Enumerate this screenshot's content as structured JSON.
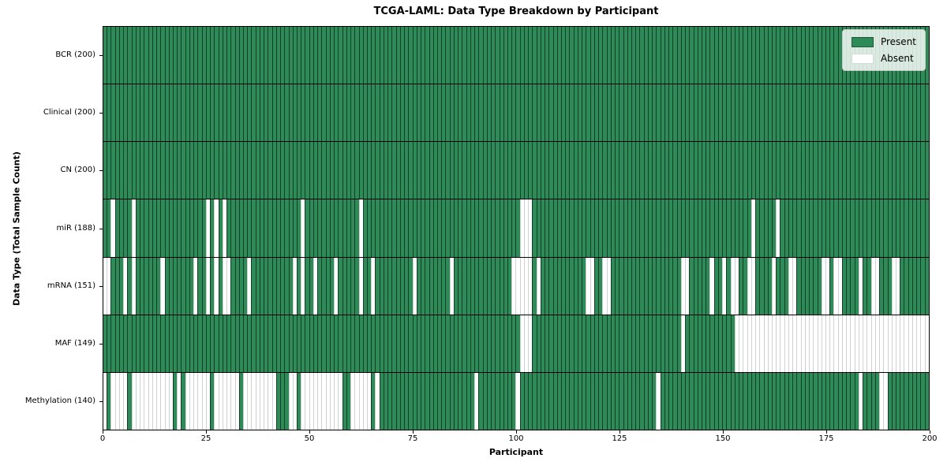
{
  "figure": {
    "title": "TCGA-LAML: Data Type Breakdown by Participant",
    "xlabel": "Participant",
    "ylabel": "Data Type (Total Sample Count)",
    "colors": {
      "present": "#2e8b57",
      "absent": "#ffffff",
      "row_divider": "#000000",
      "plot_border": "#000000"
    }
  },
  "chart_data": {
    "type": "heatmap",
    "title": "TCGA-LAML: Data Type Breakdown by Participant",
    "xlabel": "Participant",
    "ylabel": "Data Type (Total Sample Count)",
    "legend": [
      "Present",
      "Absent"
    ],
    "legend_position": "upper right",
    "x_axis": {
      "label": "Participant",
      "range": [
        0,
        200
      ],
      "ticks": [
        0,
        25,
        50,
        75,
        100,
        125,
        150,
        175,
        200
      ]
    },
    "n_participants": 200,
    "rows": [
      {
        "name": "BCR",
        "count": 200,
        "label": "BCR (200)",
        "absent_participants": []
      },
      {
        "name": "Clinical",
        "count": 200,
        "label": "Clinical (200)",
        "absent_participants": []
      },
      {
        "name": "CN",
        "count": 200,
        "label": "CN (200)",
        "absent_participants": []
      },
      {
        "name": "miR",
        "count": 188,
        "label": "miR (188)",
        "absent_participants": [
          2,
          7,
          25,
          27,
          29,
          48,
          62,
          101,
          102,
          103,
          157,
          163
        ]
      },
      {
        "name": "mRNA",
        "count": 151,
        "label": "mRNA (151)",
        "absent_participants": [
          0,
          1,
          5,
          7,
          14,
          22,
          25,
          27,
          29,
          30,
          35,
          46,
          48,
          51,
          56,
          62,
          65,
          75,
          84,
          99,
          100,
          101,
          102,
          103,
          105,
          117,
          118,
          121,
          122,
          140,
          141,
          147,
          150,
          152,
          153,
          156,
          157,
          162,
          166,
          167,
          174,
          175,
          177,
          178,
          183,
          186,
          187,
          191,
          192
        ]
      },
      {
        "name": "MAF",
        "count": 149,
        "label": "MAF (149)",
        "absent_participants": [
          101,
          102,
          103,
          140,
          153,
          154,
          155,
          156,
          157,
          158,
          159,
          160,
          161,
          162,
          163,
          164,
          165,
          166,
          167,
          168,
          169,
          170,
          171,
          172,
          173,
          174,
          175,
          176,
          177,
          178,
          179,
          180,
          181,
          182,
          183,
          184,
          185,
          186,
          187,
          188,
          189,
          190,
          191,
          192,
          193,
          194,
          195,
          196,
          197,
          198,
          199
        ]
      },
      {
        "name": "Methylation",
        "count": 140,
        "label": "Methylation (140)",
        "absent_participants": [
          0,
          2,
          3,
          4,
          5,
          7,
          8,
          9,
          10,
          11,
          12,
          13,
          14,
          15,
          16,
          18,
          20,
          21,
          22,
          23,
          24,
          25,
          27,
          28,
          29,
          30,
          31,
          32,
          34,
          35,
          36,
          37,
          38,
          39,
          40,
          41,
          45,
          46,
          48,
          49,
          50,
          51,
          52,
          53,
          54,
          55,
          56,
          57,
          60,
          61,
          62,
          63,
          64,
          66,
          90,
          100,
          134,
          183,
          188,
          189
        ]
      }
    ]
  }
}
